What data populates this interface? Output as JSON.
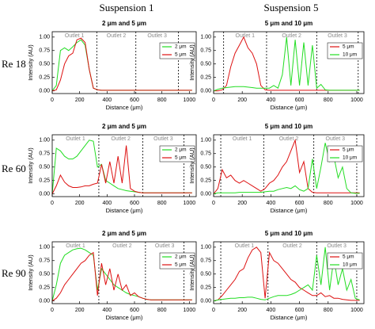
{
  "column_headers": [
    "Suspension 1",
    "Suspension 5"
  ],
  "row_labels": [
    "Re 18",
    "Re 60",
    "Re 90"
  ],
  "chart_data": [
    {
      "type": "line",
      "title": "2 μm and 5 μm",
      "xlabel": "Distance (μm)",
      "ylabel": "Intensity (AU)",
      "x": [
        0,
        30,
        60,
        90,
        120,
        150,
        180,
        210,
        240,
        270,
        300,
        330,
        360,
        390,
        420,
        450,
        480,
        510,
        540,
        570,
        600,
        630,
        660,
        690,
        720,
        750,
        780,
        810,
        840,
        870,
        900,
        930,
        960,
        990,
        1020
      ],
      "series": [
        {
          "name": "2 μm",
          "color": "#22dd22",
          "values": [
            0,
            0.1,
            0.75,
            0.8,
            0.75,
            0.82,
            0.9,
            0.95,
            0.85,
            0.4,
            0.05,
            0.02,
            0.01,
            0.01,
            0.01,
            0.01,
            0.01,
            0.01,
            0.01,
            0.01,
            0.01,
            0.01,
            0.01,
            0.01,
            0.01,
            0.01,
            0.01,
            0.01,
            0.01,
            0.01,
            0.01,
            0.01,
            0.01,
            0.01,
            0.01
          ]
        },
        {
          "name": "5 μm",
          "color": "#dd1111",
          "values": [
            0,
            0.02,
            0.2,
            0.5,
            0.65,
            0.7,
            0.95,
            0.98,
            0.9,
            0.4,
            0.05,
            0.02,
            0.01,
            0.01,
            0.01,
            0.01,
            0.01,
            0.01,
            0.01,
            0.01,
            0.01,
            0.01,
            0.01,
            0.01,
            0.01,
            0.01,
            0.01,
            0.01,
            0.01,
            0.01,
            0.01,
            0.01,
            0.01,
            0.01,
            0.01
          ]
        }
      ],
      "xlim": [
        0,
        1050
      ],
      "ylim": [
        -0.05,
        1.1
      ],
      "xticks": [
        0,
        200,
        400,
        600,
        800,
        1000
      ],
      "yticks": [
        {
          "value": 0,
          "label": "0.00"
        },
        {
          "value": 0.25,
          "label": "0.25"
        },
        {
          "value": 0.5,
          "label": "0.50"
        },
        {
          "value": 0.75,
          "label": "0.75"
        },
        {
          "value": 1,
          "label": "1.00"
        }
      ],
      "dividers": [
        325,
        610,
        920
      ],
      "regions": [
        "Outlet 1",
        "Outlet 2",
        "Outlet 3"
      ],
      "legend": "upper right"
    },
    {
      "type": "line",
      "title": "5 μm and 10 μm",
      "xlabel": "Distance (μm)",
      "ylabel": "Intensity (AU)",
      "x": [
        0,
        30,
        60,
        90,
        120,
        150,
        180,
        210,
        240,
        270,
        300,
        330,
        360,
        390,
        420,
        450,
        480,
        510,
        540,
        570,
        600,
        630,
        660,
        690,
        720,
        750,
        780,
        810,
        840,
        870,
        900,
        930,
        960,
        990,
        1020
      ],
      "series": [
        {
          "name": "5 μm",
          "color": "#dd1111",
          "values": [
            0,
            0,
            0.02,
            0.1,
            0.45,
            0.7,
            0.85,
            1.0,
            0.8,
            0.7,
            0.5,
            0.1,
            0.02,
            0.01,
            0.01,
            0.01,
            0.01,
            0.01,
            0.01,
            0.01,
            0.01,
            0.01,
            0.01,
            0.01,
            0.01,
            0.01,
            0.01,
            0.01,
            0.01,
            0.01,
            0.01,
            0.01,
            0.01,
            0.01,
            0.01
          ]
        },
        {
          "name": "10 μm",
          "color": "#22dd22",
          "values": [
            0,
            0.03,
            0.05,
            0.06,
            0.07,
            0.08,
            0.08,
            0.08,
            0.07,
            0.06,
            0.05,
            0.05,
            0.05,
            0.05,
            0.1,
            0.05,
            0.3,
            1.0,
            0.1,
            0.95,
            0.1,
            0.9,
            0.1,
            0.85,
            0.05,
            0.12,
            0.02,
            0.01,
            0.01,
            0.01,
            0.01,
            0.01,
            0.01,
            0.01,
            0.01
          ]
        }
      ],
      "xlim": [
        0,
        1050
      ],
      "ylim": [
        -0.05,
        1.1
      ],
      "xticks": [
        0,
        200,
        400,
        600,
        800,
        1000
      ],
      "yticks": [
        {
          "value": 0,
          "label": "0.00"
        },
        {
          "value": 0.25,
          "label": "0.25"
        },
        {
          "value": 0.5,
          "label": "0.50"
        },
        {
          "value": 0.75,
          "label": "0.75"
        },
        {
          "value": 1,
          "label": "1.00"
        }
      ],
      "dividers": [
        70,
        370,
        720,
        1010
      ],
      "regions": [
        "Outlet 1",
        "Outlet 2",
        "Outlet 3"
      ],
      "legend": "upper right"
    },
    {
      "type": "line",
      "title": "2 μm and 5 μm",
      "xlabel": "Distance (μm)",
      "ylabel": "Intensity (AU)",
      "x": [
        0,
        30,
        60,
        90,
        120,
        150,
        180,
        210,
        240,
        270,
        300,
        330,
        360,
        390,
        420,
        450,
        480,
        510,
        540,
        570,
        600,
        630,
        660,
        690,
        720,
        750,
        780,
        810,
        840,
        870,
        900,
        930,
        960,
        990,
        1020
      ],
      "series": [
        {
          "name": "2 μm",
          "color": "#22dd22",
          "values": [
            0,
            0.85,
            0.8,
            0.7,
            0.65,
            0.65,
            0.7,
            0.8,
            0.9,
            1.0,
            0.98,
            0.5,
            0.55,
            0.25,
            0.2,
            0.15,
            0.1,
            0.08,
            0.06,
            0.05,
            0.04,
            0.03,
            0.02,
            0.02,
            0.02,
            0.02,
            0.02,
            0.02,
            0.02,
            0.02,
            0.02,
            0.02,
            0.02,
            0.02,
            0.02
          ]
        },
        {
          "name": "5 μm",
          "color": "#dd1111",
          "values": [
            0,
            0.15,
            0.35,
            0.22,
            0.15,
            0.12,
            0.12,
            0.13,
            0.15,
            0.15,
            0.18,
            0.2,
            0.55,
            0.2,
            0.6,
            0.2,
            0.7,
            0.2,
            0.9,
            0.1,
            0.05,
            0.03,
            0.02,
            0.02,
            0.02,
            0.02,
            0.02,
            0.02,
            0.02,
            0.02,
            0.02,
            0.02,
            0.02,
            0.02,
            0.02
          ]
        }
      ],
      "xlim": [
        0,
        1050
      ],
      "ylim": [
        -0.05,
        1.1
      ],
      "xticks": [
        0,
        200,
        400,
        600,
        800,
        1000
      ],
      "yticks": [
        {
          "value": 0,
          "label": "0.00"
        },
        {
          "value": 0.25,
          "label": "0.25"
        },
        {
          "value": 0.5,
          "label": "0.50"
        },
        {
          "value": 0.75,
          "label": "0.75"
        },
        {
          "value": 1,
          "label": "1.00"
        }
      ],
      "dividers": [
        340,
        660,
        960
      ],
      "regions": [
        "Outlet 1",
        "Outlet 2",
        "Outlet 3"
      ],
      "legend": "upper right"
    },
    {
      "type": "line",
      "title": "5 μm and 10 μm",
      "xlabel": "Distance (μm)",
      "ylabel": "Intensity (AU)",
      "x": [
        0,
        30,
        60,
        90,
        120,
        150,
        180,
        210,
        240,
        270,
        300,
        330,
        360,
        390,
        420,
        450,
        480,
        510,
        540,
        570,
        600,
        630,
        660,
        690,
        720,
        750,
        780,
        810,
        840,
        870,
        900,
        930,
        960,
        990,
        1020
      ],
      "series": [
        {
          "name": "5 μm",
          "color": "#dd1111",
          "values": [
            0,
            0.1,
            0.45,
            0.3,
            0.35,
            0.25,
            0.2,
            0.25,
            0.2,
            0.15,
            0.1,
            0.05,
            0.1,
            0.2,
            0.25,
            0.35,
            0.5,
            0.6,
            0.8,
            1.0,
            0.4,
            0.6,
            0.1,
            0.03,
            0.02,
            0.02,
            0.02,
            0.02,
            0.02,
            0.02,
            0.02,
            0.02,
            0.02,
            0.02,
            0.02
          ]
        },
        {
          "name": "10 μm",
          "color": "#22dd22",
          "values": [
            0,
            0.02,
            0.02,
            0.02,
            0.02,
            0.02,
            0.03,
            0.03,
            0.03,
            0.03,
            0.03,
            0.03,
            0.04,
            0.05,
            0.05,
            0.08,
            0.1,
            0.12,
            0.1,
            0.15,
            0.08,
            0.05,
            0.1,
            0.65,
            0.1,
            0.5,
            0.95,
            0.6,
            0.7,
            0.3,
            0.5,
            0.1,
            0.02,
            0.01,
            0.01
          ]
        }
      ],
      "xlim": [
        0,
        1050
      ],
      "ylim": [
        -0.05,
        1.1
      ],
      "xticks": [
        0,
        200,
        400,
        600,
        800,
        1000
      ],
      "yticks": [
        {
          "value": 0,
          "label": "0.00"
        },
        {
          "value": 0.25,
          "label": "0.25"
        },
        {
          "value": 0.5,
          "label": "0.50"
        },
        {
          "value": 0.75,
          "label": "0.75"
        },
        {
          "value": 1,
          "label": "1.00"
        }
      ],
      "dividers": [
        50,
        350,
        700,
        1000
      ],
      "regions": [
        "Outlet 1",
        "Outlet 2",
        "Outlet 3"
      ],
      "legend": "upper right"
    },
    {
      "type": "line",
      "title": "2 μm and 5 μm",
      "xlabel": "Distance (μm)",
      "ylabel": "Intensity (AU)",
      "x": [
        0,
        30,
        60,
        90,
        120,
        150,
        180,
        210,
        240,
        270,
        300,
        330,
        360,
        390,
        420,
        450,
        480,
        510,
        540,
        570,
        600,
        630,
        660,
        690,
        720,
        750,
        780,
        810,
        840,
        870,
        900,
        930,
        960,
        990,
        1020
      ],
      "series": [
        {
          "name": "2 μm",
          "color": "#22dd22",
          "values": [
            0,
            0.3,
            0.7,
            0.85,
            0.9,
            0.95,
            0.97,
            0.98,
            0.95,
            0.9,
            0.85,
            0.2,
            0.6,
            0.5,
            0.4,
            0.3,
            0.25,
            0.2,
            0.15,
            0.12,
            0.1,
            0.08,
            0.05,
            0.03,
            0.02,
            0.02,
            0.02,
            0.02,
            0.02,
            0.02,
            0.02,
            0.02,
            0.02,
            0.02,
            0.02
          ]
        },
        {
          "name": "5 μm",
          "color": "#dd1111",
          "values": [
            0,
            0.05,
            0.15,
            0.3,
            0.4,
            0.5,
            0.6,
            0.7,
            0.75,
            0.85,
            0.9,
            0.1,
            0.7,
            0.3,
            0.6,
            0.2,
            0.5,
            0.2,
            0.3,
            0.1,
            0.15,
            0.08,
            0.05,
            0.03,
            0.02,
            0.02,
            0.02,
            0.02,
            0.02,
            0.02,
            0.02,
            0.02,
            0.02,
            0.02,
            0.02
          ]
        }
      ],
      "xlim": [
        0,
        1050
      ],
      "ylim": [
        -0.05,
        1.1
      ],
      "xticks": [
        0,
        200,
        400,
        600,
        800,
        1000
      ],
      "yticks": [
        {
          "value": 0,
          "label": "0.00"
        },
        {
          "value": 0.25,
          "label": "0.25"
        },
        {
          "value": 0.5,
          "label": "0.50"
        },
        {
          "value": 0.75,
          "label": "0.75"
        },
        {
          "value": 1,
          "label": "1.00"
        }
      ],
      "dividers": [
        340,
        680,
        960
      ],
      "regions": [
        "Outlet 1",
        "Outlet 2",
        "Outlet 3"
      ],
      "legend": "upper right"
    },
    {
      "type": "line",
      "title": "5 μm and 10 μm",
      "xlabel": "Distance (μm)",
      "ylabel": "Intensity (AU)",
      "x": [
        0,
        30,
        60,
        90,
        120,
        150,
        180,
        210,
        240,
        270,
        300,
        330,
        360,
        390,
        420,
        450,
        480,
        510,
        540,
        570,
        600,
        630,
        660,
        690,
        720,
        750,
        780,
        810,
        840,
        870,
        900,
        930,
        960,
        990,
        1020
      ],
      "series": [
        {
          "name": "5 μm",
          "color": "#dd1111",
          "values": [
            0,
            0.02,
            0.1,
            0.2,
            0.3,
            0.4,
            0.55,
            0.6,
            0.8,
            0.95,
            1.0,
            0.9,
            0.05,
            0.9,
            0.75,
            0.7,
            0.6,
            0.5,
            0.4,
            0.35,
            0.25,
            0.2,
            0.15,
            0.1,
            0.1,
            0.15,
            0.08,
            0.1,
            0.05,
            0.05,
            0.03,
            0.02,
            0.01,
            0.01,
            0.01
          ]
        },
        {
          "name": "10 μm",
          "color": "#22dd22",
          "values": [
            0,
            0.02,
            0.03,
            0.04,
            0.05,
            0.05,
            0.06,
            0.06,
            0.07,
            0.07,
            0.05,
            0.03,
            0.02,
            0.05,
            0.08,
            0.1,
            0.1,
            0.1,
            0.12,
            0.15,
            0.2,
            0.25,
            0.3,
            0.2,
            0.85,
            0.3,
            1.0,
            0.2,
            0.8,
            0.3,
            0.6,
            0.2,
            0.4,
            0.05,
            0.02
          ]
        }
      ],
      "xlim": [
        0,
        1050
      ],
      "ylim": [
        -0.05,
        1.1
      ],
      "xticks": [
        0,
        200,
        400,
        600,
        800,
        1000
      ],
      "yticks": [
        {
          "value": 0,
          "label": "0.00"
        },
        {
          "value": 0.25,
          "label": "0.25"
        },
        {
          "value": 0.5,
          "label": "0.50"
        },
        {
          "value": 0.75,
          "label": "0.75"
        },
        {
          "value": 1,
          "label": "1.00"
        }
      ],
      "dividers": [
        50,
        380,
        720,
        1000
      ],
      "regions": [
        "Outlet 1",
        "Outlet 2",
        "Outlet 3"
      ],
      "legend": "upper right"
    }
  ]
}
